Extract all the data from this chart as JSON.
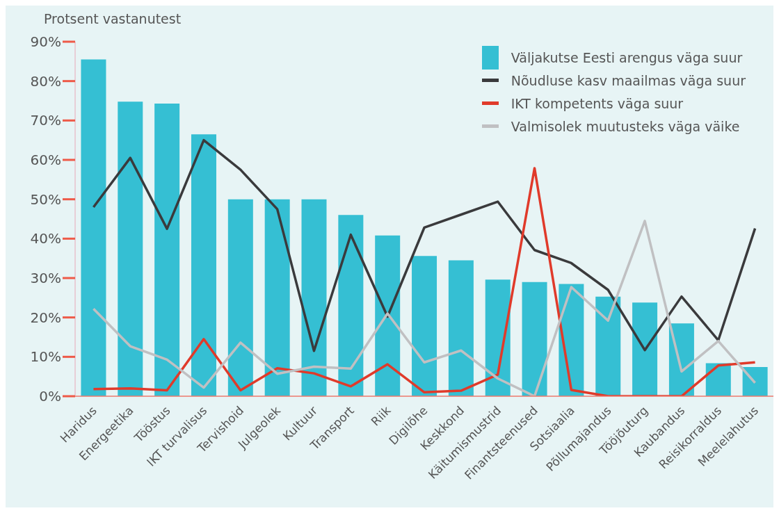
{
  "chart_data": {
    "type": "bar",
    "ylabel": "Protsent vastanutest",
    "categories": [
      "Haridus",
      "Energeetika",
      "Tööstus",
      "IKT turvalisus",
      "Tervishoid",
      "Julgeolek",
      "Kultuur",
      "Transport",
      "Riik",
      "Digilõhe",
      "Keskkond",
      "Käitumismustrid",
      "Finantsteenused",
      "Sotsiaalia",
      "Põllumajandus",
      "Tööjõuturg",
      "Kaubandus",
      "Reisikorraldus",
      "Meelelahutus"
    ],
    "series": [
      {
        "name": "Väljakutse Eesti arengus väga suur",
        "color": "#35bfd3",
        "values": [
          85.5,
          74.8,
          74.3,
          66.5,
          50,
          50,
          50,
          46,
          40.8,
          35.6,
          34.5,
          29.6,
          29,
          28.5,
          25.3,
          23.8,
          18.5,
          8.4,
          7.4
        ]
      },
      {
        "name": "Nõudluse kasv maailmas väga suur",
        "type": "line",
        "color": "#3a3a3c",
        "values": [
          48,
          60.5,
          42.5,
          65,
          57.5,
          47.5,
          11.5,
          41,
          20.2,
          42.8,
          46.1,
          49.4,
          37.1,
          33.8,
          27,
          11.7,
          25.3,
          14.2,
          42.6
        ]
      },
      {
        "name": "IKT kompetents väga suur",
        "type": "line",
        "color": "#e03a2a",
        "values": [
          1.8,
          2,
          1.5,
          14.5,
          1.5,
          7.1,
          5.8,
          2.5,
          8.1,
          1,
          1.4,
          5.5,
          57.9,
          1.6,
          0,
          0,
          0,
          7.8,
          8.6
        ]
      },
      {
        "name": "Valmisolek muutusteks väga väike",
        "type": "line",
        "color": "#c0c0c2",
        "values": [
          22.2,
          12.7,
          9.3,
          2.2,
          13.6,
          5.7,
          7.5,
          7,
          21,
          8.6,
          11.6,
          4.5,
          0,
          27.7,
          19.2,
          44.5,
          6.3,
          14,
          3.4
        ]
      }
    ],
    "ylim": [
      0,
      90
    ],
    "yticks": [
      {
        "value": 0,
        "label": "0%"
      },
      {
        "value": 10,
        "label": "10%"
      },
      {
        "value": 20,
        "label": "20%"
      },
      {
        "value": 30,
        "label": "30%"
      },
      {
        "value": 40,
        "label": "40%"
      },
      {
        "value": 50,
        "label": "50%"
      },
      {
        "value": 60,
        "label": "60%"
      },
      {
        "value": 70,
        "label": "70%"
      },
      {
        "value": 80,
        "label": "80%"
      },
      {
        "value": 90,
        "label": "90%"
      }
    ],
    "grid": false,
    "legend": "top right",
    "marker": "none",
    "line_style": "solid"
  }
}
